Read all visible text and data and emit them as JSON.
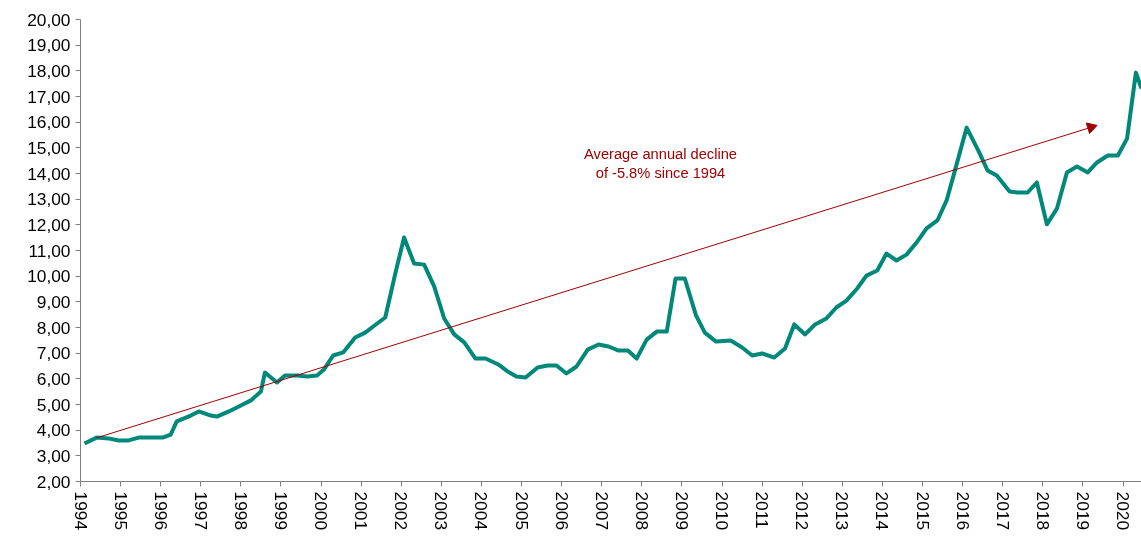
{
  "chart_data": {
    "type": "line",
    "grid": false,
    "marker": "none",
    "line_style": "solid",
    "xlim": [
      1994,
      2020.46
    ],
    "ylim": [
      2,
      20
    ],
    "xticks": [
      1994,
      1995,
      1996,
      1997,
      1998,
      1999,
      2000,
      2001,
      2002,
      2003,
      2004,
      2005,
      2006,
      2007,
      2008,
      2009,
      2010,
      2011,
      2012,
      2013,
      2014,
      2015,
      2016,
      2017,
      2018,
      2019,
      2020
    ],
    "yticks": [
      {
        "value": 2,
        "label": "2,00"
      },
      {
        "value": 3,
        "label": "3,00"
      },
      {
        "value": 4,
        "label": "4,00"
      },
      {
        "value": 5,
        "label": "5,00"
      },
      {
        "value": 6,
        "label": "6,00"
      },
      {
        "value": 7,
        "label": "7,00"
      },
      {
        "value": 8,
        "label": "8,00"
      },
      {
        "value": 9,
        "label": "9,00"
      },
      {
        "value": 10,
        "label": "10,00"
      },
      {
        "value": 11,
        "label": "11,00"
      },
      {
        "value": 12,
        "label": "12,00"
      },
      {
        "value": 13,
        "label": "13,00"
      },
      {
        "value": 14,
        "label": "14,00"
      },
      {
        "value": 15,
        "label": "15,00"
      },
      {
        "value": 16,
        "label": "16,00"
      },
      {
        "value": 17,
        "label": "17,00"
      },
      {
        "value": 18,
        "label": "18,00"
      },
      {
        "value": 19,
        "label": "19,00"
      },
      {
        "value": 20,
        "label": "20,00"
      }
    ],
    "annotations": [
      "Average annual decline\nof -5.8% since 1994"
    ],
    "series": [
      {
        "color": "#00887a",
        "x": [
          1994.1,
          1994.4,
          1994.7,
          1994.95,
          1995.2,
          1995.45,
          1995.75,
          1996.05,
          1996.25,
          1996.4,
          1996.75,
          1996.95,
          1997.25,
          1997.4,
          1997.7,
          1997.95,
          1998.25,
          1998.5,
          1998.6,
          1998.9,
          1999.1,
          1999.4,
          1999.65,
          1999.9,
          2000.07,
          2000.3,
          2000.55,
          2000.85,
          2001.1,
          2001.3,
          2001.6,
          2001.85,
          2002.07,
          2002.32,
          2002.57,
          2002.82,
          2003.07,
          2003.32,
          2003.57,
          2003.85,
          2004.1,
          2004.42,
          2004.65,
          2004.87,
          2005.1,
          2005.4,
          2005.65,
          2005.87,
          2006.12,
          2006.37,
          2006.65,
          2006.92,
          2007.17,
          2007.42,
          2007.65,
          2007.87,
          2008.12,
          2008.37,
          2008.62,
          2008.84,
          2009.07,
          2009.35,
          2009.57,
          2009.85,
          2010.22,
          2010.5,
          2010.75,
          2011.0,
          2011.3,
          2011.57,
          2011.8,
          2012.07,
          2012.32,
          2012.6,
          2012.85,
          2013.1,
          2013.37,
          2013.6,
          2013.87,
          2014.1,
          2014.35,
          2014.6,
          2014.85,
          2015.1,
          2015.37,
          2015.6,
          2015.82,
          2016.1,
          2016.4,
          2016.62,
          2016.85,
          2017.17,
          2017.37,
          2017.62,
          2017.85,
          2018.1,
          2018.35,
          2018.6,
          2018.85,
          2019.12,
          2019.35,
          2019.62,
          2019.87,
          2020.1,
          2020.32,
          2020.46
        ],
        "values": [
          3.48,
          3.71,
          3.68,
          3.6,
          3.6,
          3.71,
          3.71,
          3.71,
          3.83,
          4.34,
          4.57,
          4.73,
          4.57,
          4.53,
          4.73,
          4.92,
          5.16,
          5.51,
          6.25,
          5.86,
          6.13,
          6.13,
          6.09,
          6.13,
          6.36,
          6.91,
          7.03,
          7.61,
          7.8,
          8.04,
          8.39,
          10.1,
          11.51,
          10.49,
          10.45,
          9.6,
          8.35,
          7.73,
          7.42,
          6.79,
          6.79,
          6.56,
          6.29,
          6.09,
          6.05,
          6.44,
          6.52,
          6.52,
          6.21,
          6.48,
          7.14,
          7.34,
          7.26,
          7.1,
          7.1,
          6.79,
          7.53,
          7.84,
          7.84,
          9.91,
          9.91,
          8.47,
          7.8,
          7.45,
          7.49,
          7.22,
          6.91,
          6.99,
          6.83,
          7.18,
          8.12,
          7.73,
          8.12,
          8.35,
          8.78,
          9.05,
          9.52,
          10.02,
          10.22,
          10.88,
          10.61,
          10.84,
          11.31,
          11.86,
          12.17,
          12.95,
          14.19,
          15.79,
          14.86,
          14.12,
          13.92,
          13.3,
          13.26,
          13.26,
          13.65,
          12.02,
          12.63,
          14.04,
          14.27,
          14.04,
          14.43,
          14.7,
          14.7,
          15.36,
          17.93,
          17.31
        ]
      },
      {
        "type": "line",
        "color": "#a00000",
        "marker": "triangle",
        "x": [
          1994.4,
          2019.2
        ],
        "values": [
          3.7,
          15.8
        ]
      }
    ]
  }
}
